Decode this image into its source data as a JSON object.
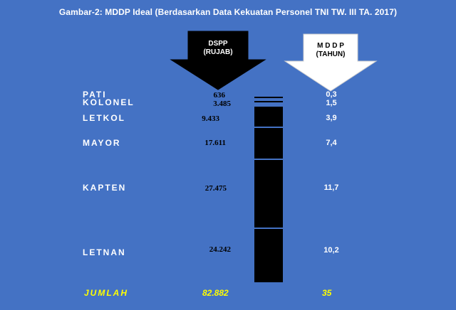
{
  "title": "Gambar-2: MDDP Ideal (Berdasarkan Data Kekuatan Personel TNI TW. III TA. 2017)",
  "arrows": {
    "dspp": {
      "line1": "DSPP",
      "line2": "(RUJAB)",
      "fill": "#000000",
      "text_color": "#ffffff"
    },
    "mddp": {
      "line1": "M D D P",
      "line2": "(TAHUN)",
      "fill": "#ffffff",
      "text_color": "#000000"
    }
  },
  "ranks": [
    {
      "name": "PATI",
      "dspp": "636",
      "mddp": "0,3"
    },
    {
      "name": "KOLONEL",
      "dspp": "3.485",
      "mddp": "1,5"
    },
    {
      "name": "LETKOL",
      "dspp": "9.433",
      "mddp": "3,9"
    },
    {
      "name": "MAYOR",
      "dspp": "17.611",
      "mddp": "7,4"
    },
    {
      "name": "KAPTEN",
      "dspp": "27.475",
      "mddp": "11,7"
    },
    {
      "name": "LETNAN",
      "dspp": "24.242",
      "mddp": "10,2"
    }
  ],
  "total": {
    "label": "JUMLAH",
    "dspp": "82.882",
    "mddp": "35"
  },
  "colors": {
    "background": "#4472c4",
    "total": "#ffff00",
    "bar": "#000000"
  }
}
